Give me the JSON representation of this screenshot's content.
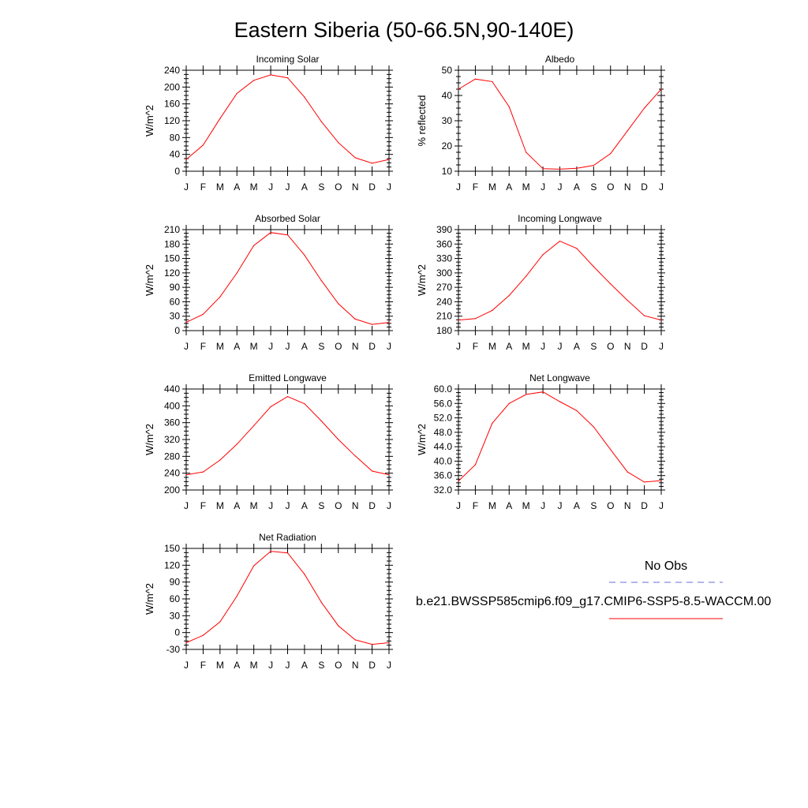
{
  "page_title": "Eastern Siberia (50-66.5N,90-140E)",
  "months": [
    "J",
    "F",
    "M",
    "A",
    "M",
    "J",
    "J",
    "A",
    "S",
    "O",
    "N",
    "D",
    "J"
  ],
  "line_color": "#ff0000",
  "obs_color": "#6b6bd9",
  "legend": {
    "obs_label": "No Obs",
    "model_label": "b.e21.BWSSP585cmip6.f09_g17.CMIP6-SSP5-8.5-WACCM.00"
  },
  "chart_data": [
    {
      "type": "line",
      "title": "Incoming Solar",
      "ylabel": "W/m^2",
      "ylim": [
        0,
        240
      ],
      "yticks": [
        "0",
        "40",
        "80",
        "120",
        "160",
        "200",
        "240"
      ],
      "x": [
        "J",
        "F",
        "M",
        "A",
        "M",
        "J",
        "J",
        "A",
        "S",
        "O",
        "N",
        "D",
        "J"
      ],
      "values": [
        28,
        62,
        125,
        185,
        216,
        229,
        222,
        176,
        118,
        68,
        32,
        19,
        28
      ]
    },
    {
      "type": "line",
      "title": "Albedo",
      "ylabel": "% reflected",
      "ylim": [
        10,
        50
      ],
      "yticks": [
        "10",
        "20",
        "30",
        "40",
        "50"
      ],
      "x": [
        "J",
        "F",
        "M",
        "A",
        "M",
        "J",
        "J",
        "A",
        "S",
        "O",
        "N",
        "D",
        "J"
      ],
      "values": [
        42.5,
        46.5,
        45.5,
        35.5,
        17.5,
        11.0,
        10.8,
        11.2,
        12.3,
        17.0,
        26.0,
        35.0,
        42.5
      ]
    },
    {
      "type": "line",
      "title": "Absorbed Solar",
      "ylabel": "W/m^2",
      "ylim": [
        0,
        210
      ],
      "yticks": [
        "0",
        "30",
        "60",
        "90",
        "120",
        "150",
        "180",
        "210"
      ],
      "x": [
        "J",
        "F",
        "M",
        "A",
        "M",
        "J",
        "J",
        "A",
        "S",
        "O",
        "N",
        "D",
        "J"
      ],
      "values": [
        17,
        34,
        70,
        120,
        177,
        204,
        199,
        157,
        104,
        56,
        24,
        13,
        17
      ]
    },
    {
      "type": "line",
      "title": "Incoming Longwave",
      "ylabel": "W/m^2",
      "ylim": [
        180,
        390
      ],
      "yticks": [
        "180",
        "210",
        "240",
        "270",
        "300",
        "330",
        "360",
        "390"
      ],
      "x": [
        "J",
        "F",
        "M",
        "A",
        "M",
        "J",
        "J",
        "A",
        "S",
        "O",
        "N",
        "D",
        "J"
      ],
      "values": [
        202,
        205,
        222,
        253,
        293,
        338,
        366,
        351,
        313,
        277,
        243,
        211,
        202
      ]
    },
    {
      "type": "line",
      "title": "Emitted Longwave",
      "ylabel": "W/m^2",
      "ylim": [
        200,
        440
      ],
      "yticks": [
        "200",
        "240",
        "280",
        "320",
        "360",
        "400",
        "440"
      ],
      "x": [
        "J",
        "F",
        "M",
        "A",
        "M",
        "J",
        "J",
        "A",
        "S",
        "O",
        "N",
        "D",
        "J"
      ],
      "values": [
        236,
        243,
        271,
        309,
        353,
        398,
        422,
        405,
        364,
        320,
        281,
        245,
        236
      ]
    },
    {
      "type": "line",
      "title": "Net Longwave",
      "ylabel": "W/m^2",
      "ylim": [
        32,
        60
      ],
      "yticks": [
        "32.0",
        "36.0",
        "40.0",
        "44.0",
        "48.0",
        "52.0",
        "56.0",
        "60.0"
      ],
      "x": [
        "J",
        "F",
        "M",
        "A",
        "M",
        "J",
        "J",
        "A",
        "S",
        "O",
        "N",
        "D",
        "J"
      ],
      "values": [
        34.5,
        39.0,
        50.5,
        56.0,
        58.5,
        59.2,
        56.5,
        54.0,
        49.5,
        43.2,
        37.0,
        34.2,
        34.6
      ]
    },
    {
      "type": "line",
      "title": "Net Radiation",
      "ylabel": "W/m^2",
      "ylim": [
        -30,
        150
      ],
      "yticks": [
        "-30",
        "0",
        "30",
        "60",
        "90",
        "120",
        "150"
      ],
      "x": [
        "J",
        "F",
        "M",
        "A",
        "M",
        "J",
        "J",
        "A",
        "S",
        "O",
        "N",
        "D",
        "J"
      ],
      "values": [
        -18,
        -5,
        19,
        65,
        119,
        145,
        142,
        104,
        54,
        12,
        -13,
        -21,
        -18
      ]
    }
  ]
}
